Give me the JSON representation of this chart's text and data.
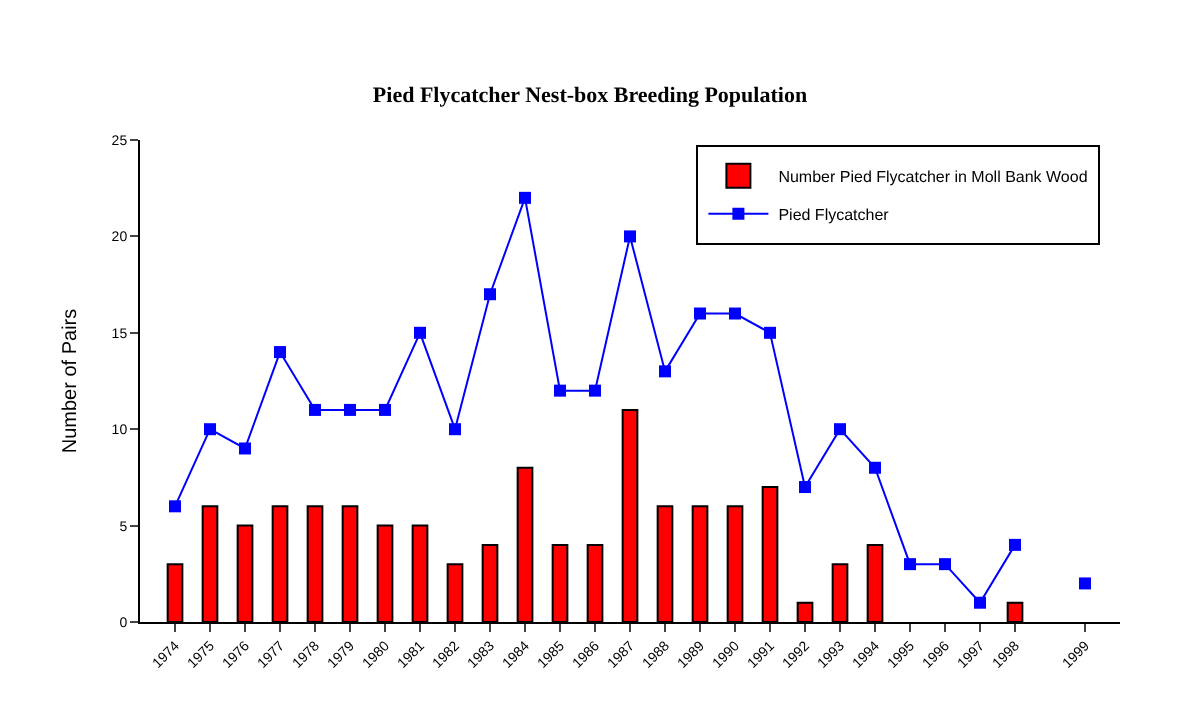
{
  "chart_data": {
    "type": "bar",
    "title": "Pied Flycatcher Nest-box Breeding Population",
    "ylabel": "Number of Pairs",
    "categories": [
      "1974",
      "1975",
      "1976",
      "1977",
      "1978",
      "1979",
      "1980",
      "1981",
      "1982",
      "1983",
      "1984",
      "1985",
      "1986",
      "1987",
      "1988",
      "1989",
      "1990",
      "1991",
      "1992",
      "1993",
      "1994",
      "1995",
      "1996",
      "1997",
      "1998",
      null,
      "1999"
    ],
    "series": [
      {
        "name": "Number Pied Flycatcher in Moll Bank Wood",
        "color": "#ff0000",
        "values": [
          3,
          6,
          5,
          6,
          6,
          6,
          5,
          5,
          3,
          4,
          8,
          4,
          4,
          11,
          6,
          6,
          6,
          7,
          1,
          3,
          4,
          null,
          null,
          null,
          1,
          null,
          null
        ]
      },
      {
        "name": "Pied Flycatcher",
        "type": "line",
        "color": "#0000ff",
        "marker": "square",
        "values": [
          6,
          10,
          9,
          14,
          11,
          11,
          11,
          15,
          10,
          17,
          22,
          12,
          12,
          20,
          13,
          16,
          16,
          15,
          7,
          10,
          8,
          3,
          3,
          1,
          4,
          null,
          2
        ]
      }
    ],
    "ylim": [
      0,
      25
    ],
    "yticks": [
      0,
      5,
      10,
      15,
      20,
      25
    ],
    "grid": false,
    "legend": "top right"
  }
}
